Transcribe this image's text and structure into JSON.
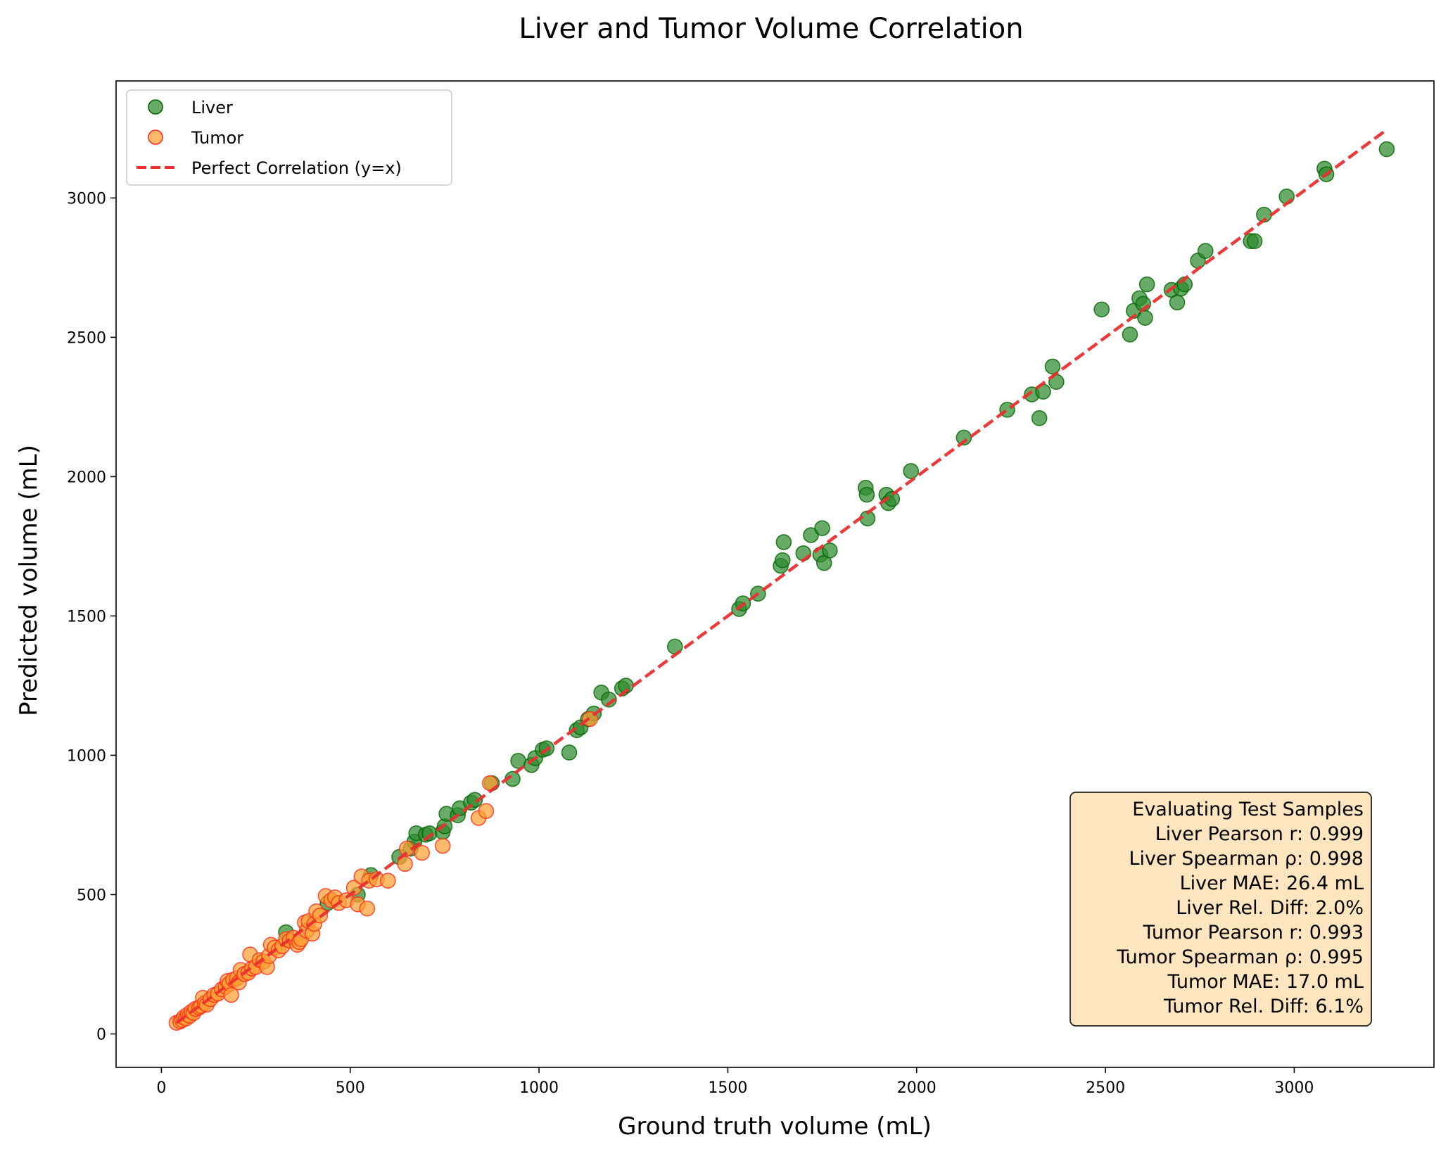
{
  "chart_data": {
    "type": "scatter",
    "title": "Liver and Tumor Volume Correlation",
    "xlabel": "Ground truth volume (mL)",
    "ylabel": "Predicted volume (mL)",
    "xlim": [
      -120,
      3370
    ],
    "ylim": [
      -120,
      3420
    ],
    "xticks": [
      0,
      500,
      1000,
      1500,
      2000,
      2500,
      3000
    ],
    "yticks": [
      0,
      500,
      1000,
      1500,
      2000,
      2500,
      3000
    ],
    "grid": false,
    "legend_position": "top-left",
    "colors": {
      "liver_fill": "#2e8b2e",
      "liver_edge": "#006400",
      "tumor_fill": "#ffa033",
      "tumor_edge": "#ff2a1a",
      "ref_line": "#e83030",
      "stats_box_fill": "#fde5c0"
    },
    "series": [
      {
        "name": "Liver",
        "points": [
          [
            330,
            365
          ],
          [
            440,
            470
          ],
          [
            520,
            500
          ],
          [
            555,
            570
          ],
          [
            630,
            635
          ],
          [
            660,
            665
          ],
          [
            670,
            690
          ],
          [
            675,
            720
          ],
          [
            700,
            715
          ],
          [
            710,
            720
          ],
          [
            745,
            725
          ],
          [
            750,
            745
          ],
          [
            755,
            790
          ],
          [
            785,
            785
          ],
          [
            790,
            810
          ],
          [
            820,
            830
          ],
          [
            830,
            840
          ],
          [
            875,
            900
          ],
          [
            930,
            915
          ],
          [
            945,
            980
          ],
          [
            980,
            965
          ],
          [
            990,
            990
          ],
          [
            1010,
            1020
          ],
          [
            1020,
            1025
          ],
          [
            1080,
            1010
          ],
          [
            1100,
            1090
          ],
          [
            1110,
            1100
          ],
          [
            1130,
            1130
          ],
          [
            1145,
            1150
          ],
          [
            1165,
            1225
          ],
          [
            1185,
            1200
          ],
          [
            1220,
            1240
          ],
          [
            1230,
            1250
          ],
          [
            1360,
            1390
          ],
          [
            1530,
            1525
          ],
          [
            1540,
            1545
          ],
          [
            1580,
            1580
          ],
          [
            1640,
            1680
          ],
          [
            1645,
            1700
          ],
          [
            1648,
            1765
          ],
          [
            1700,
            1725
          ],
          [
            1720,
            1790
          ],
          [
            1745,
            1720
          ],
          [
            1750,
            1815
          ],
          [
            1755,
            1690
          ],
          [
            1770,
            1735
          ],
          [
            1865,
            1960
          ],
          [
            1868,
            1935
          ],
          [
            1870,
            1850
          ],
          [
            1920,
            1935
          ],
          [
            1925,
            1905
          ],
          [
            1935,
            1920
          ],
          [
            1985,
            2020
          ],
          [
            2125,
            2140
          ],
          [
            2240,
            2240
          ],
          [
            2305,
            2295
          ],
          [
            2325,
            2210
          ],
          [
            2335,
            2305
          ],
          [
            2360,
            2395
          ],
          [
            2370,
            2340
          ],
          [
            2490,
            2600
          ],
          [
            2565,
            2510
          ],
          [
            2575,
            2595
          ],
          [
            2590,
            2640
          ],
          [
            2600,
            2620
          ],
          [
            2605,
            2570
          ],
          [
            2610,
            2690
          ],
          [
            2675,
            2670
          ],
          [
            2690,
            2625
          ],
          [
            2700,
            2675
          ],
          [
            2710,
            2690
          ],
          [
            2745,
            2775
          ],
          [
            2765,
            2810
          ],
          [
            2885,
            2845
          ],
          [
            2895,
            2845
          ],
          [
            2920,
            2940
          ],
          [
            2980,
            3005
          ],
          [
            3080,
            3105
          ],
          [
            3085,
            3085
          ],
          [
            3245,
            3175
          ]
        ]
      },
      {
        "name": "Tumor",
        "points": [
          [
            40,
            40
          ],
          [
            50,
            45
          ],
          [
            55,
            50
          ],
          [
            60,
            60
          ],
          [
            65,
            55
          ],
          [
            70,
            70
          ],
          [
            75,
            65
          ],
          [
            80,
            80
          ],
          [
            85,
            75
          ],
          [
            90,
            90
          ],
          [
            100,
            95
          ],
          [
            105,
            100
          ],
          [
            110,
            130
          ],
          [
            115,
            110
          ],
          [
            120,
            105
          ],
          [
            130,
            125
          ],
          [
            140,
            140
          ],
          [
            150,
            145
          ],
          [
            160,
            160
          ],
          [
            170,
            170
          ],
          [
            175,
            190
          ],
          [
            180,
            180
          ],
          [
            185,
            140
          ],
          [
            190,
            195
          ],
          [
            200,
            200
          ],
          [
            205,
            185
          ],
          [
            210,
            230
          ],
          [
            220,
            215
          ],
          [
            230,
            220
          ],
          [
            235,
            285
          ],
          [
            240,
            235
          ],
          [
            250,
            240
          ],
          [
            260,
            265
          ],
          [
            270,
            260
          ],
          [
            280,
            240
          ],
          [
            285,
            280
          ],
          [
            290,
            320
          ],
          [
            300,
            310
          ],
          [
            310,
            300
          ],
          [
            320,
            315
          ],
          [
            330,
            340
          ],
          [
            340,
            335
          ],
          [
            350,
            345
          ],
          [
            360,
            320
          ],
          [
            365,
            330
          ],
          [
            370,
            340
          ],
          [
            380,
            400
          ],
          [
            385,
            370
          ],
          [
            390,
            405
          ],
          [
            400,
            360
          ],
          [
            405,
            395
          ],
          [
            410,
            440
          ],
          [
            420,
            425
          ],
          [
            435,
            495
          ],
          [
            450,
            480
          ],
          [
            460,
            490
          ],
          [
            470,
            470
          ],
          [
            490,
            480
          ],
          [
            510,
            525
          ],
          [
            520,
            465
          ],
          [
            530,
            565
          ],
          [
            545,
            450
          ],
          [
            550,
            550
          ],
          [
            570,
            555
          ],
          [
            600,
            550
          ],
          [
            645,
            610
          ],
          [
            650,
            665
          ],
          [
            690,
            650
          ],
          [
            745,
            675
          ],
          [
            840,
            775
          ],
          [
            860,
            800
          ],
          [
            870,
            900
          ],
          [
            1135,
            1130
          ]
        ]
      }
    ],
    "reference_line": {
      "name": "Perfect Correlation (y=x)",
      "from": [
        40,
        40
      ],
      "to": [
        3245,
        3245
      ]
    },
    "legend": [
      {
        "label": "Liver",
        "marker": "circle",
        "series": "Liver"
      },
      {
        "label": "Tumor",
        "marker": "circle",
        "series": "Tumor"
      },
      {
        "label": "Perfect Correlation (y=x)",
        "marker": "dashed-line",
        "series": "ref"
      }
    ],
    "stats_box": {
      "position": "bottom-right",
      "lines": [
        "Evaluating Test Samples",
        "Liver Pearson r: 0.999",
        "Liver Spearman ρ: 0.998",
        "Liver MAE: 26.4 mL",
        "Liver Rel. Diff: 2.0%",
        "Tumor Pearson r: 0.993",
        "Tumor Spearman ρ: 0.995",
        "Tumor MAE: 17.0 mL",
        "Tumor Rel. Diff: 6.1%"
      ]
    }
  }
}
